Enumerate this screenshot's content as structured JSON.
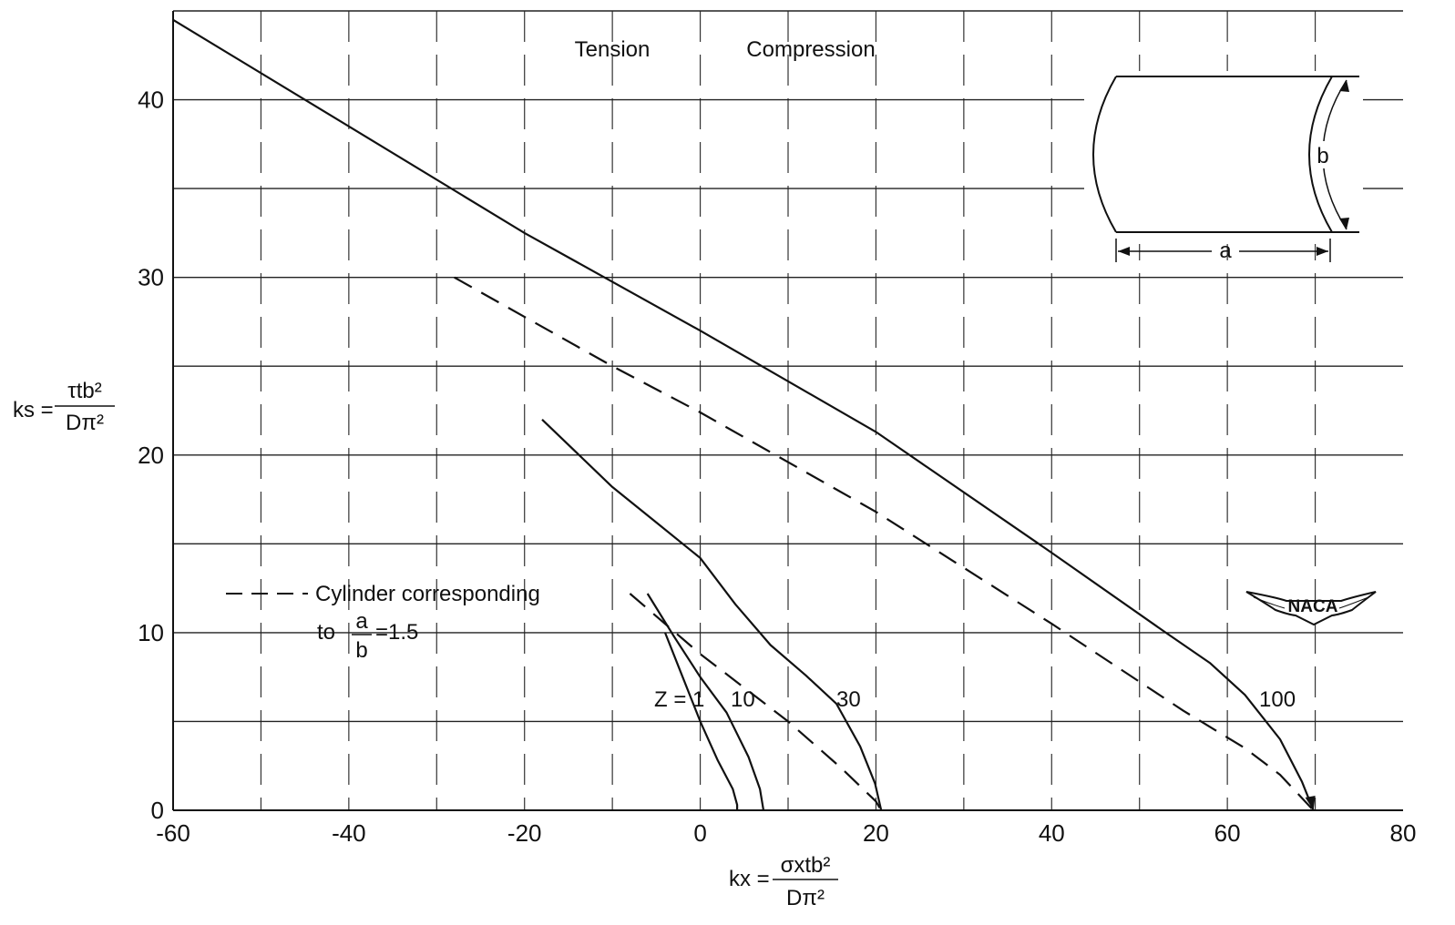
{
  "chart_data": {
    "type": "line",
    "xlabel": "kx =",
    "xlabel_fraction": {
      "numerator": "σxtb²",
      "denominator": "Dπ²"
    },
    "ylabel": "ks =",
    "ylabel_fraction": {
      "numerator": "τtb²",
      "denominator": "Dπ²"
    },
    "xlim": [
      -60,
      80
    ],
    "ylim": [
      0,
      45
    ],
    "x_ticks": [
      "-60",
      "-40",
      "-20",
      "0",
      "20",
      "40",
      "60",
      "80"
    ],
    "y_ticks": [
      "0",
      "10",
      "20",
      "30",
      "40"
    ],
    "grid": true,
    "region_labels": {
      "left": "Tension",
      "right": "Compression"
    },
    "legend": {
      "placement": "left-middle",
      "line1": "Cylinder corresponding",
      "line2_prefix": "to",
      "frac_num": "a",
      "frac_den": "b",
      "line2_suffix": "=1.5"
    },
    "inset": {
      "dim_b": "b",
      "dim_a": "a"
    },
    "logo": "NACA",
    "series": [
      {
        "label": "Z = 1",
        "style": "solid",
        "points": [
          [
            -4,
            10
          ],
          [
            -2,
            7.5
          ],
          [
            0,
            5
          ],
          [
            2,
            2.8
          ],
          [
            3.7,
            1.2
          ],
          [
            4.2,
            0.3
          ],
          [
            4.2,
            0
          ]
        ]
      },
      {
        "label": "10",
        "style": "solid",
        "points": [
          [
            -6,
            12.2
          ],
          [
            -3,
            9.8
          ],
          [
            0,
            7.5
          ],
          [
            3,
            5.5
          ],
          [
            5.5,
            3
          ],
          [
            6.8,
            1.2
          ],
          [
            7.2,
            0
          ]
        ]
      },
      {
        "label": "30",
        "style": "solid",
        "points": [
          [
            -18,
            22
          ],
          [
            -10,
            18.2
          ],
          [
            -5,
            16.2
          ],
          [
            0,
            14.2
          ],
          [
            4,
            11.6
          ],
          [
            8,
            9.3
          ],
          [
            12,
            7.6
          ],
          [
            15.5,
            6
          ],
          [
            18.2,
            3.6
          ],
          [
            19.9,
            1.5
          ],
          [
            20.6,
            0
          ]
        ]
      },
      {
        "label": "100",
        "style": "solid",
        "points": [
          [
            -60,
            44.5
          ],
          [
            -40,
            38.5
          ],
          [
            -20,
            32.5
          ],
          [
            0,
            27
          ],
          [
            20,
            21.3
          ],
          [
            40,
            14.5
          ],
          [
            53,
            10
          ],
          [
            58,
            8.3
          ],
          [
            62,
            6.5
          ],
          [
            66,
            4
          ],
          [
            68.5,
            1.6
          ],
          [
            69.8,
            0
          ]
        ]
      },
      {
        "label": "",
        "style": "dashed",
        "points": [
          [
            -28,
            30
          ],
          [
            -10,
            25
          ],
          [
            0,
            22.4
          ],
          [
            20,
            16.8
          ],
          [
            40,
            10.5
          ],
          [
            55,
            5.6
          ],
          [
            62,
            3.5
          ],
          [
            66,
            2
          ],
          [
            69.8,
            0
          ]
        ]
      },
      {
        "label": "",
        "style": "dashed",
        "points": [
          [
            -8,
            12.2
          ],
          [
            0,
            8.8
          ],
          [
            10,
            5
          ],
          [
            16,
            2.4
          ],
          [
            20,
            0.5
          ],
          [
            20.6,
            0
          ]
        ]
      }
    ]
  }
}
